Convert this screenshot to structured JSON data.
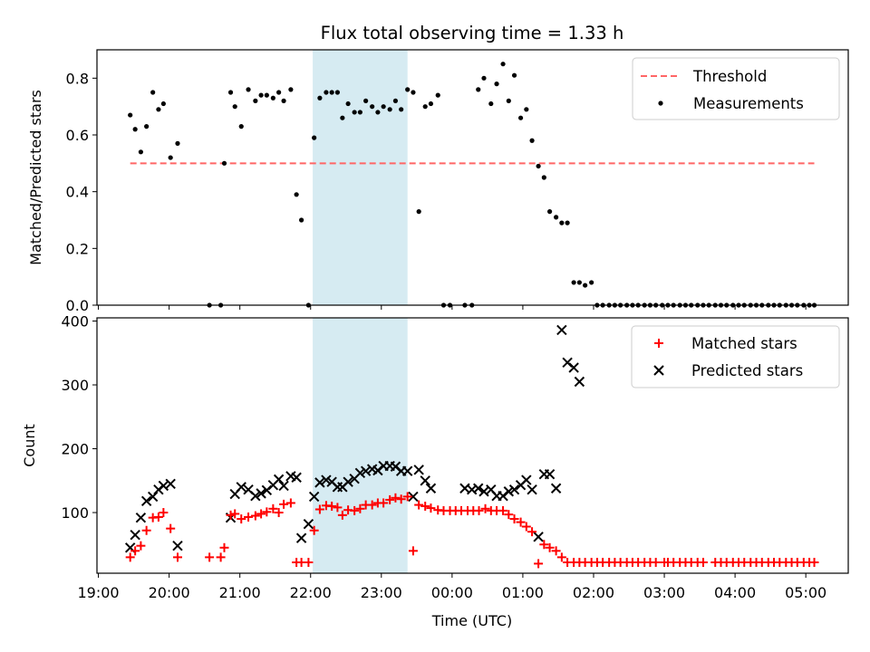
{
  "chart_data": [
    {
      "type": "scatter",
      "title": "Flux total observing time = 1.33 h",
      "xlabel": "",
      "ylabel": "Matched/Predicted stars",
      "x_unit": "UTC hour (values >= 24 are next day)",
      "xlim": [
        18.98,
        29.6
      ],
      "ylim": [
        0,
        0.9
      ],
      "yticks": [
        0.0,
        0.2,
        0.4,
        0.6,
        0.8
      ],
      "ytick_labels": [
        "0.0",
        "0.2",
        "0.4",
        "0.6",
        "0.8"
      ],
      "highlight": {
        "x_start": 22.03,
        "x_end": 23.37,
        "color": "#add8e6"
      },
      "legend_position": "top-right",
      "series": [
        {
          "name": "Threshold",
          "kind": "dashed-line",
          "color": "#ff6666",
          "x": [
            19.45,
            29.12
          ],
          "y": [
            0.5,
            0.5
          ]
        },
        {
          "name": "Measurements",
          "kind": "dots",
          "color": "#000000",
          "x": [
            19.45,
            19.52,
            19.6,
            19.68,
            19.77,
            19.85,
            19.92,
            20.02,
            20.12,
            20.57,
            20.73,
            20.78,
            20.87,
            20.93,
            21.02,
            21.12,
            21.22,
            21.3,
            21.38,
            21.47,
            21.55,
            21.62,
            21.72,
            21.8,
            21.87,
            21.97,
            22.05,
            22.13,
            22.22,
            22.3,
            22.38,
            22.45,
            22.53,
            22.62,
            22.7,
            22.78,
            22.87,
            22.95,
            23.03,
            23.12,
            23.2,
            23.28,
            23.37,
            23.45,
            23.53,
            23.62,
            23.7,
            23.8,
            23.88,
            23.97,
            24.18,
            24.28,
            24.37,
            24.45,
            24.55,
            24.63,
            24.72,
            24.8,
            24.88,
            24.97,
            25.05,
            25.13,
            25.22,
            25.3,
            25.38,
            25.47,
            25.55,
            25.63,
            25.72,
            25.8,
            25.88,
            25.97,
            26.05,
            26.13,
            26.22,
            26.3,
            26.38,
            26.47,
            26.55,
            26.63,
            26.72,
            26.8,
            26.88,
            26.97,
            27.05,
            27.13,
            27.22,
            27.3,
            27.38,
            27.47,
            27.55,
            27.63,
            27.72,
            27.8,
            27.88,
            27.97,
            28.05,
            28.13,
            28.22,
            28.3,
            28.38,
            28.47,
            28.55,
            28.63,
            28.72,
            28.8,
            28.88,
            28.97,
            29.05,
            29.12
          ],
          "y": [
            0.67,
            0.62,
            0.54,
            0.63,
            0.75,
            0.69,
            0.71,
            0.52,
            0.57,
            0.0,
            0.0,
            0.5,
            0.75,
            0.7,
            0.63,
            0.76,
            0.72,
            0.74,
            0.74,
            0.73,
            0.75,
            0.72,
            0.76,
            0.39,
            0.3,
            0.0,
            0.59,
            0.73,
            0.75,
            0.75,
            0.75,
            0.66,
            0.71,
            0.68,
            0.68,
            0.72,
            0.7,
            0.68,
            0.7,
            0.69,
            0.72,
            0.69,
            0.76,
            0.75,
            0.33,
            0.7,
            0.71,
            0.74,
            0.0,
            0.0,
            0.0,
            0.0,
            0.76,
            0.8,
            0.71,
            0.78,
            0.85,
            0.72,
            0.81,
            0.66,
            0.69,
            0.58,
            0.49,
            0.45,
            0.33,
            0.31,
            0.29,
            0.29,
            0.08,
            0.08,
            0.07,
            0.08,
            0.0,
            0.0,
            0.0,
            0.0,
            0.0,
            0.0,
            0.0,
            0.0,
            0.0,
            0.0,
            0.0,
            0.0,
            0.0,
            0.0,
            0.0,
            0.0,
            0.0,
            0.0,
            0.0,
            0.0,
            0.0,
            0.0,
            0.0,
            0.0,
            0.0,
            0.0,
            0.0,
            0.0,
            0.0,
            0.0,
            0.0,
            0.0,
            0.0,
            0.0,
            0.0,
            0.0,
            0.0,
            0.0
          ]
        }
      ]
    },
    {
      "type": "scatter",
      "title": "",
      "xlabel": "Time (UTC)",
      "ylabel": "Count",
      "x_unit": "UTC hour (values >= 24 are next day)",
      "xlim": [
        18.98,
        29.6
      ],
      "ylim": [
        5,
        405
      ],
      "xticks": [
        19,
        20,
        21,
        22,
        23,
        24,
        25,
        26,
        27,
        28,
        29
      ],
      "xtick_labels": [
        "19:00",
        "20:00",
        "21:00",
        "22:00",
        "23:00",
        "00:00",
        "01:00",
        "02:00",
        "03:00",
        "04:00",
        "05:00"
      ],
      "yticks": [
        100,
        200,
        300,
        400
      ],
      "ytick_labels": [
        "100",
        "200",
        "300",
        "400"
      ],
      "highlight": {
        "x_start": 22.03,
        "x_end": 23.37,
        "color": "#add8e6"
      },
      "legend_position": "top-right",
      "series": [
        {
          "name": "Matched stars",
          "kind": "plus",
          "color": "#ff0000",
          "x": [
            19.45,
            19.52,
            19.6,
            19.68,
            19.77,
            19.85,
            19.92,
            20.02,
            20.12,
            20.57,
            20.73,
            20.78,
            20.87,
            20.93,
            21.02,
            21.12,
            21.22,
            21.3,
            21.38,
            21.47,
            21.55,
            21.62,
            21.72,
            21.8,
            21.87,
            21.97,
            22.05,
            22.13,
            22.22,
            22.3,
            22.38,
            22.45,
            22.53,
            22.62,
            22.7,
            22.78,
            22.87,
            22.95,
            23.03,
            23.12,
            23.2,
            23.28,
            23.37,
            23.45,
            23.53,
            23.62,
            23.7,
            23.8,
            23.88,
            23.97,
            24.05,
            24.13,
            24.22,
            24.3,
            24.38,
            24.47,
            24.55,
            24.63,
            24.72,
            24.8,
            24.88,
            24.97,
            25.05,
            25.13,
            25.22,
            25.3,
            25.38,
            25.47,
            25.55,
            25.63,
            25.72,
            25.8,
            25.88,
            25.97,
            26.05,
            26.13,
            26.22,
            26.3,
            26.38,
            26.47,
            26.55,
            26.63,
            26.72,
            26.8,
            26.88,
            27.0,
            27.05,
            27.13,
            27.22,
            27.3,
            27.38,
            27.47,
            27.55,
            27.72,
            27.8,
            27.88,
            27.97,
            28.05,
            28.13,
            28.22,
            28.3,
            28.38,
            28.47,
            28.55,
            28.63,
            28.72,
            28.8,
            28.88,
            28.97,
            29.05,
            29.12
          ],
          "y": [
            30,
            40,
            48,
            72,
            92,
            93,
            100,
            75,
            30,
            30,
            30,
            45,
            96,
            98,
            90,
            93,
            95,
            98,
            101,
            106,
            100,
            113,
            115,
            22,
            22,
            22,
            72,
            105,
            111,
            110,
            108,
            96,
            104,
            103,
            106,
            112,
            112,
            115,
            115,
            120,
            123,
            121,
            125,
            40,
            112,
            110,
            107,
            104,
            103,
            103,
            103,
            103,
            103,
            103,
            103,
            106,
            103,
            103,
            103,
            97,
            90,
            85,
            78,
            70,
            20,
            50,
            45,
            40,
            30,
            22,
            22,
            22,
            22,
            22,
            22,
            22,
            22,
            22,
            22,
            22,
            22,
            22,
            22,
            22,
            22,
            22,
            22,
            22,
            22,
            22,
            22,
            22,
            22,
            22,
            22,
            22,
            22,
            22,
            22,
            22,
            22,
            22,
            22,
            22,
            22,
            22,
            22,
            22,
            22,
            22,
            22
          ]
        },
        {
          "name": "Predicted stars",
          "kind": "cross",
          "color": "#000000",
          "x": [
            19.45,
            19.52,
            19.6,
            19.68,
            19.77,
            19.85,
            19.92,
            20.02,
            20.12,
            20.87,
            20.93,
            21.02,
            21.12,
            21.22,
            21.3,
            21.38,
            21.47,
            21.55,
            21.62,
            21.72,
            21.8,
            21.87,
            21.97,
            22.05,
            22.13,
            22.22,
            22.3,
            22.38,
            22.45,
            22.53,
            22.62,
            22.7,
            22.78,
            22.87,
            22.95,
            23.03,
            23.12,
            23.2,
            23.28,
            23.37,
            23.45,
            23.53,
            23.62,
            23.7,
            24.18,
            24.28,
            24.37,
            24.45,
            24.55,
            24.63,
            24.72,
            24.8,
            24.88,
            24.97,
            25.05,
            25.13,
            25.22,
            25.3,
            25.38,
            25.47,
            25.55,
            25.63,
            25.72,
            25.8
          ],
          "y": [
            45,
            65,
            92,
            118,
            125,
            136,
            142,
            145,
            48,
            92,
            129,
            140,
            136,
            126,
            130,
            135,
            143,
            152,
            142,
            157,
            155,
            60,
            82,
            125,
            147,
            151,
            148,
            140,
            140,
            148,
            153,
            162,
            165,
            168,
            166,
            173,
            173,
            172,
            165,
            165,
            125,
            167,
            150,
            138,
            138,
            136,
            138,
            133,
            136,
            126,
            126,
            133,
            136,
            143,
            151,
            136,
            62,
            160,
            160,
            138,
            386,
            335,
            327,
            305
          ]
        }
      ]
    }
  ]
}
